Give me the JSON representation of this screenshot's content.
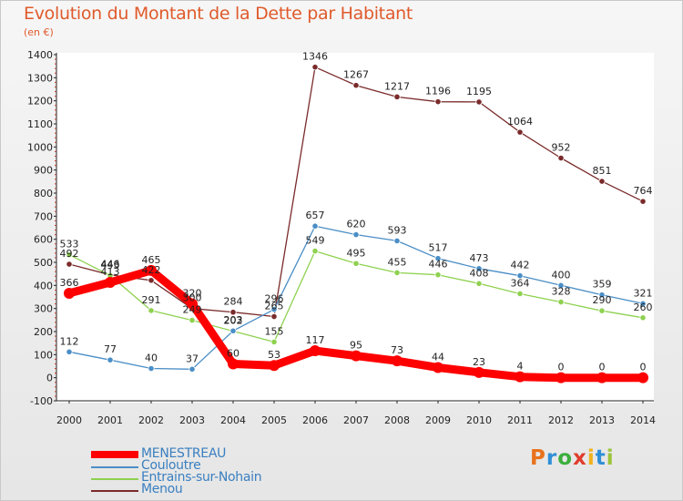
{
  "header": {
    "title": "Evolution du Montant de la Dette par Habitant",
    "unit": "(en €)"
  },
  "logo": {
    "text": "Proxiti",
    "colors": [
      "#e8731c",
      "#2f8fd6",
      "#3cae3c",
      "#e03c2c",
      "#f0b21c",
      "#2f8fd6",
      "#9bc43a"
    ]
  },
  "chart_data": {
    "type": "line",
    "x": [
      2000,
      2001,
      2002,
      2003,
      2004,
      2005,
      2006,
      2007,
      2008,
      2009,
      2010,
      2011,
      2012,
      2013,
      2014
    ],
    "ylim": [
      -100,
      1400
    ],
    "yticks": [
      -100,
      0,
      100,
      200,
      300,
      400,
      500,
      600,
      700,
      800,
      900,
      1000,
      1100,
      1200,
      1300,
      1400
    ],
    "grid": false,
    "legend_position": "bottom-left",
    "series": [
      {
        "name": "MENESTREAU",
        "color": "#ff0000",
        "values": [
          366,
          413,
          465,
          320,
          60,
          53,
          117,
          95,
          73,
          44,
          23,
          4,
          0,
          0,
          0
        ]
      },
      {
        "name": "Couloutre",
        "color": "#4a8ec6",
        "values": [
          112,
          77,
          40,
          37,
          203,
          296,
          657,
          620,
          593,
          517,
          473,
          442,
          400,
          359,
          321
        ]
      },
      {
        "name": "Entrains-sur-Nohain",
        "color": "#8ed14f",
        "values": [
          533,
          443,
          291,
          249,
          202,
          155,
          549,
          495,
          455,
          446,
          408,
          364,
          328,
          290,
          260
        ]
      },
      {
        "name": "Menou",
        "color": "#7a2a2a",
        "values": [
          492,
          446,
          422,
          300,
          284,
          265,
          1346,
          1267,
          1217,
          1196,
          1195,
          1064,
          952,
          851,
          764
        ]
      }
    ],
    "labels": [
      {
        "series": 0,
        "texts": [
          "366",
          "413",
          "465",
          "320",
          "60",
          "53",
          "117",
          "95",
          "73",
          "44",
          "23",
          "4",
          "0",
          "0",
          "0"
        ]
      },
      {
        "series": 1,
        "texts": [
          "112",
          "77",
          "40",
          "37",
          "203",
          "296",
          "657",
          "620",
          "593",
          "517",
          "473",
          "442",
          "400",
          "359",
          "321"
        ]
      },
      {
        "series": 2,
        "texts": [
          "533",
          "443",
          "291",
          "249",
          "202",
          "155",
          "549",
          "495",
          "455",
          "446",
          "408",
          "364",
          "328",
          "290",
          "260"
        ]
      },
      {
        "series": 3,
        "texts": [
          "492",
          "446",
          "422",
          "300",
          "284",
          "265",
          "1346",
          "1267",
          "1217",
          "1196",
          "1195",
          "1064",
          "952",
          "851",
          "764"
        ]
      }
    ]
  }
}
